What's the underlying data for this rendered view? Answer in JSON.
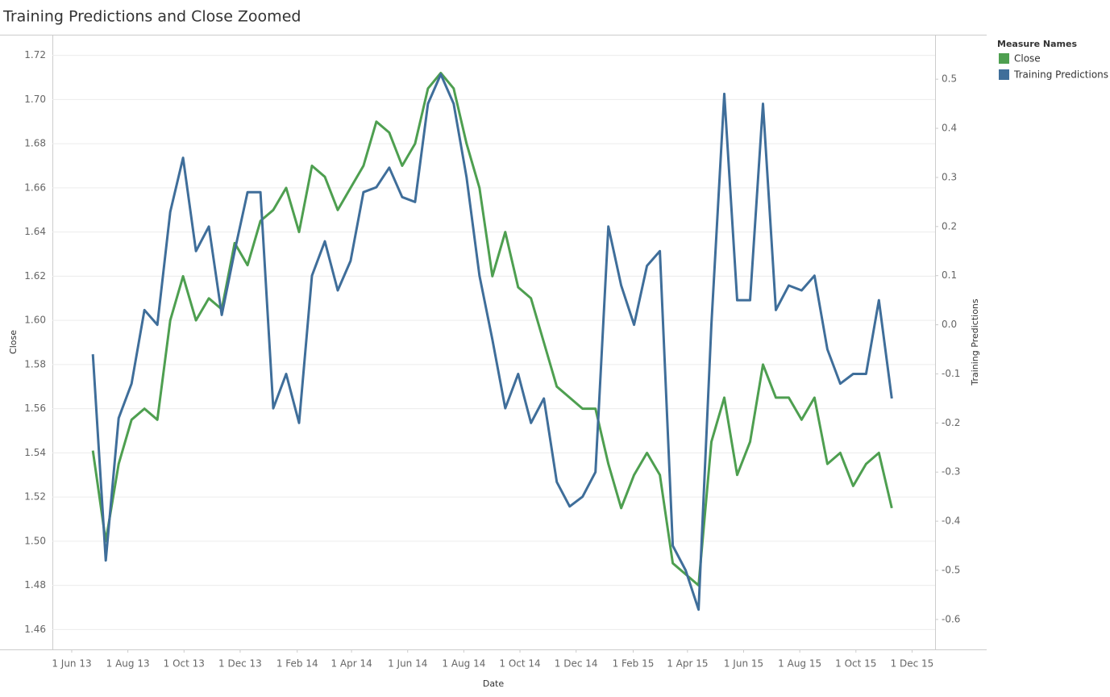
{
  "chart_data": {
    "type": "line",
    "title": "Training Predictions and Close Zoomed",
    "x_label": "Date",
    "y_label": "Close",
    "y2_label": "Training Predictions",
    "legend_title": "Measure Names",
    "legend": "right",
    "grid": true,
    "x": [
      "2013-06-24",
      "2013-07-08",
      "2013-07-22",
      "2013-08-05",
      "2013-08-19",
      "2013-09-02",
      "2013-09-16",
      "2013-09-30",
      "2013-10-14",
      "2013-10-28",
      "2013-11-11",
      "2013-11-25",
      "2013-12-09",
      "2013-12-23",
      "2014-01-06",
      "2014-01-20",
      "2014-02-03",
      "2014-02-17",
      "2014-03-03",
      "2014-03-17",
      "2014-03-31",
      "2014-04-14",
      "2014-04-28",
      "2014-05-12",
      "2014-05-26",
      "2014-06-09",
      "2014-06-23",
      "2014-07-07",
      "2014-07-21",
      "2014-08-04",
      "2014-08-18",
      "2014-09-01",
      "2014-09-15",
      "2014-09-29",
      "2014-10-13",
      "2014-10-27",
      "2014-11-10",
      "2014-11-24",
      "2014-12-08",
      "2014-12-22",
      "2015-01-05",
      "2015-01-19",
      "2015-02-02",
      "2015-02-16",
      "2015-03-02",
      "2015-03-16",
      "2015-03-30",
      "2015-04-13",
      "2015-04-27",
      "2015-05-11",
      "2015-05-25",
      "2015-06-08",
      "2015-06-22",
      "2015-07-06",
      "2015-07-20",
      "2015-08-03",
      "2015-08-17",
      "2015-08-31",
      "2015-09-14",
      "2015-09-28",
      "2015-10-12",
      "2015-10-26",
      "2015-11-09"
    ],
    "series": [
      {
        "name": "Close",
        "color": "#4e9f50",
        "axis": "y",
        "values": [
          1.541,
          1.5,
          1.535,
          1.555,
          1.56,
          1.555,
          1.6,
          1.62,
          1.6,
          1.61,
          1.605,
          1.635,
          1.625,
          1.645,
          1.65,
          1.66,
          1.64,
          1.67,
          1.665,
          1.65,
          1.66,
          1.67,
          1.69,
          1.685,
          1.67,
          1.68,
          1.705,
          1.712,
          1.705,
          1.68,
          1.66,
          1.62,
          1.64,
          1.615,
          1.61,
          1.59,
          1.57,
          1.565,
          1.56,
          1.56,
          1.535,
          1.515,
          1.53,
          1.54,
          1.53,
          1.49,
          1.485,
          1.48,
          1.545,
          1.565,
          1.53,
          1.545,
          1.58,
          1.565,
          1.565,
          1.555,
          1.565,
          1.535,
          1.54,
          1.525,
          1.535,
          1.54,
          1.515
        ]
      },
      {
        "name": "Training Predictions",
        "color": "#3f6e9a",
        "axis": "y2",
        "values": [
          -0.06,
          -0.48,
          -0.19,
          -0.12,
          0.03,
          0.0,
          0.23,
          0.34,
          0.15,
          0.2,
          0.02,
          0.15,
          0.27,
          0.27,
          -0.17,
          -0.1,
          -0.2,
          0.1,
          0.17,
          0.07,
          0.13,
          0.27,
          0.28,
          0.32,
          0.26,
          0.25,
          0.45,
          0.51,
          0.45,
          0.3,
          0.1,
          -0.03,
          -0.17,
          -0.1,
          -0.2,
          -0.15,
          -0.32,
          -0.37,
          -0.35,
          -0.3,
          0.2,
          0.08,
          0.0,
          0.12,
          0.15,
          -0.45,
          -0.5,
          -0.58,
          0.0,
          0.47,
          0.05,
          0.05,
          0.45,
          0.03,
          0.08,
          0.07,
          0.1,
          -0.05,
          -0.12,
          -0.1,
          -0.1,
          0.05,
          -0.15
        ]
      }
    ],
    "xlim": [
      "2013-05-11",
      "2015-12-26"
    ],
    "xticks": [
      {
        "value": "2013-06-01",
        "label": "1 Jun 13"
      },
      {
        "value": "2013-08-01",
        "label": "1 Aug 13"
      },
      {
        "value": "2013-10-01",
        "label": "1 Oct 13"
      },
      {
        "value": "2013-12-01",
        "label": "1 Dec 13"
      },
      {
        "value": "2014-02-01",
        "label": "1 Feb 14"
      },
      {
        "value": "2014-04-01",
        "label": "1 Apr 14"
      },
      {
        "value": "2014-06-01",
        "label": "1 Jun 14"
      },
      {
        "value": "2014-08-01",
        "label": "1 Aug 14"
      },
      {
        "value": "2014-10-01",
        "label": "1 Oct 14"
      },
      {
        "value": "2014-12-01",
        "label": "1 Dec 14"
      },
      {
        "value": "2015-02-01",
        "label": "1 Feb 15"
      },
      {
        "value": "2015-04-01",
        "label": "1 Apr 15"
      },
      {
        "value": "2015-06-01",
        "label": "1 Jun 15"
      },
      {
        "value": "2015-08-01",
        "label": "1 Aug 15"
      },
      {
        "value": "2015-10-01",
        "label": "1 Oct 15"
      },
      {
        "value": "2015-12-01",
        "label": "1 Dec 15"
      }
    ],
    "ylim": [
      1.451,
      1.729
    ],
    "yticks": [
      {
        "value": 1.46,
        "label": "1.46"
      },
      {
        "value": 1.48,
        "label": "1.48"
      },
      {
        "value": 1.5,
        "label": "1.50"
      },
      {
        "value": 1.52,
        "label": "1.52"
      },
      {
        "value": 1.54,
        "label": "1.54"
      },
      {
        "value": 1.56,
        "label": "1.56"
      },
      {
        "value": 1.58,
        "label": "1.58"
      },
      {
        "value": 1.6,
        "label": "1.60"
      },
      {
        "value": 1.62,
        "label": "1.62"
      },
      {
        "value": 1.64,
        "label": "1.64"
      },
      {
        "value": 1.66,
        "label": "1.66"
      },
      {
        "value": 1.68,
        "label": "1.68"
      },
      {
        "value": 1.7,
        "label": "1.70"
      },
      {
        "value": 1.72,
        "label": "1.72"
      }
    ],
    "y2lim": [
      -0.661,
      0.589
    ],
    "y2ticks": [
      -0.6,
      -0.5,
      -0.4,
      -0.3,
      -0.2,
      -0.1,
      {
        "value": 0,
        "label": "0.0"
      },
      0.1,
      0.2,
      0.3,
      0.4,
      0.5
    ]
  }
}
